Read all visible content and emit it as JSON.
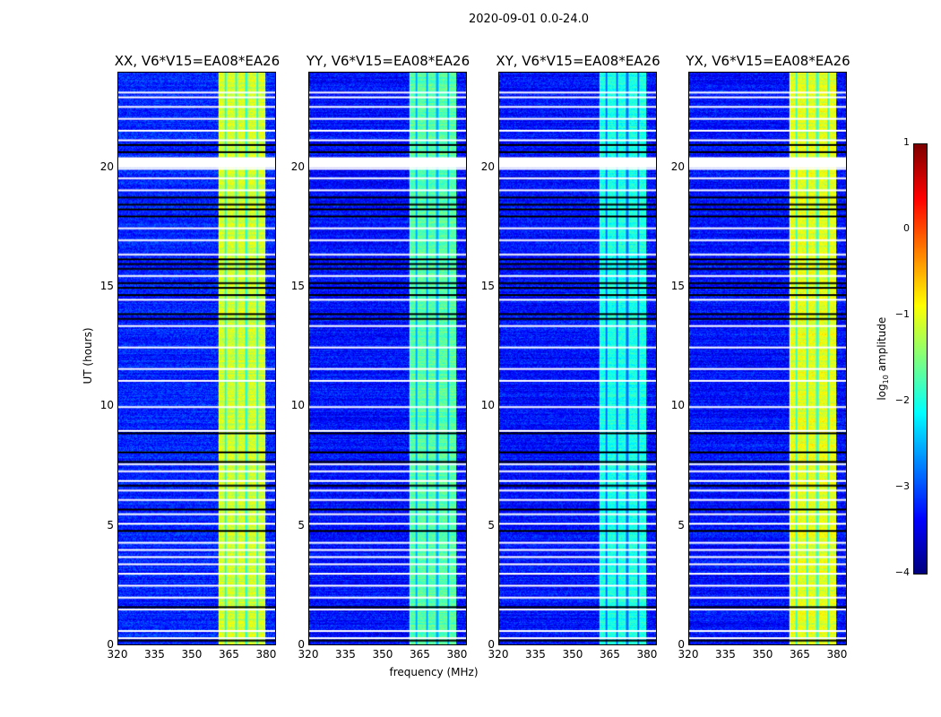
{
  "chart_data": {
    "type": "heatmap",
    "suptitle": "2020-09-01 0.0-24.0",
    "xlabel": "frequency (MHz)",
    "ylabel": "UT (hours)",
    "xlim": [
      320,
      384
    ],
    "ylim": [
      0,
      24
    ],
    "xticks": [
      "320",
      "335",
      "350",
      "365",
      "380"
    ],
    "xtick_values": [
      320,
      335,
      350,
      365,
      380
    ],
    "yticks": [
      "0",
      "5",
      "10",
      "15",
      "20"
    ],
    "ytick_values": [
      0,
      5,
      10,
      15,
      20
    ],
    "panels": [
      {
        "title": "XX, V6*V15=EA08*EA26",
        "band_level": -1.1,
        "background_level": -3.2
      },
      {
        "title": "YY, V6*V15=EA08*EA26",
        "band_level": -1.7,
        "background_level": -3.3
      },
      {
        "title": "XY, V6*V15=EA08*EA26",
        "band_level": -2.0,
        "background_level": -3.3
      },
      {
        "title": "YX, V6*V15=EA08*EA26",
        "band_level": -1.0,
        "background_level": -3.3
      }
    ],
    "bright_band_mhz": [
      360.5,
      380
    ],
    "band_gaps_mhz": [
      363.5,
      368,
      372,
      376.5
    ],
    "flagged_hours_white": [
      0.3,
      0.6,
      1.5,
      2.0,
      2.5,
      3.0,
      3.4,
      3.7,
      4.0,
      4.3,
      5.1,
      5.5,
      6.1,
      6.5,
      6.9,
      7.3,
      7.6,
      9.0,
      10.0,
      11.1,
      11.6,
      12.5,
      13.4,
      14.5,
      15.5,
      16.4,
      17.0,
      17.5,
      18.3,
      19.1,
      19.6,
      20.0,
      20.1,
      20.2,
      20.3,
      20.4,
      21.2,
      21.6,
      22.1,
      22.6,
      23.0,
      23.2
    ],
    "flagged_hours_black": [
      0.2,
      1.6,
      4.8,
      5.7,
      6.7,
      7.7,
      8.1,
      8.9,
      13.7,
      13.9,
      14.7,
      15.0,
      15.2,
      15.8,
      16.0,
      16.2,
      18.0,
      18.3,
      18.5,
      18.8,
      20.7,
      21.0
    ],
    "colorbar": {
      "label": "log10 amplitude",
      "label_main": "log",
      "label_sub": "10",
      "label_rest": " amplitude",
      "ticks": [
        "1",
        "0",
        "−1",
        "−2",
        "−3",
        "−4"
      ],
      "tick_values": [
        1,
        0,
        -1,
        -2,
        -3,
        -4
      ],
      "clim": [
        -4,
        1
      ],
      "colormap": "jet"
    }
  }
}
